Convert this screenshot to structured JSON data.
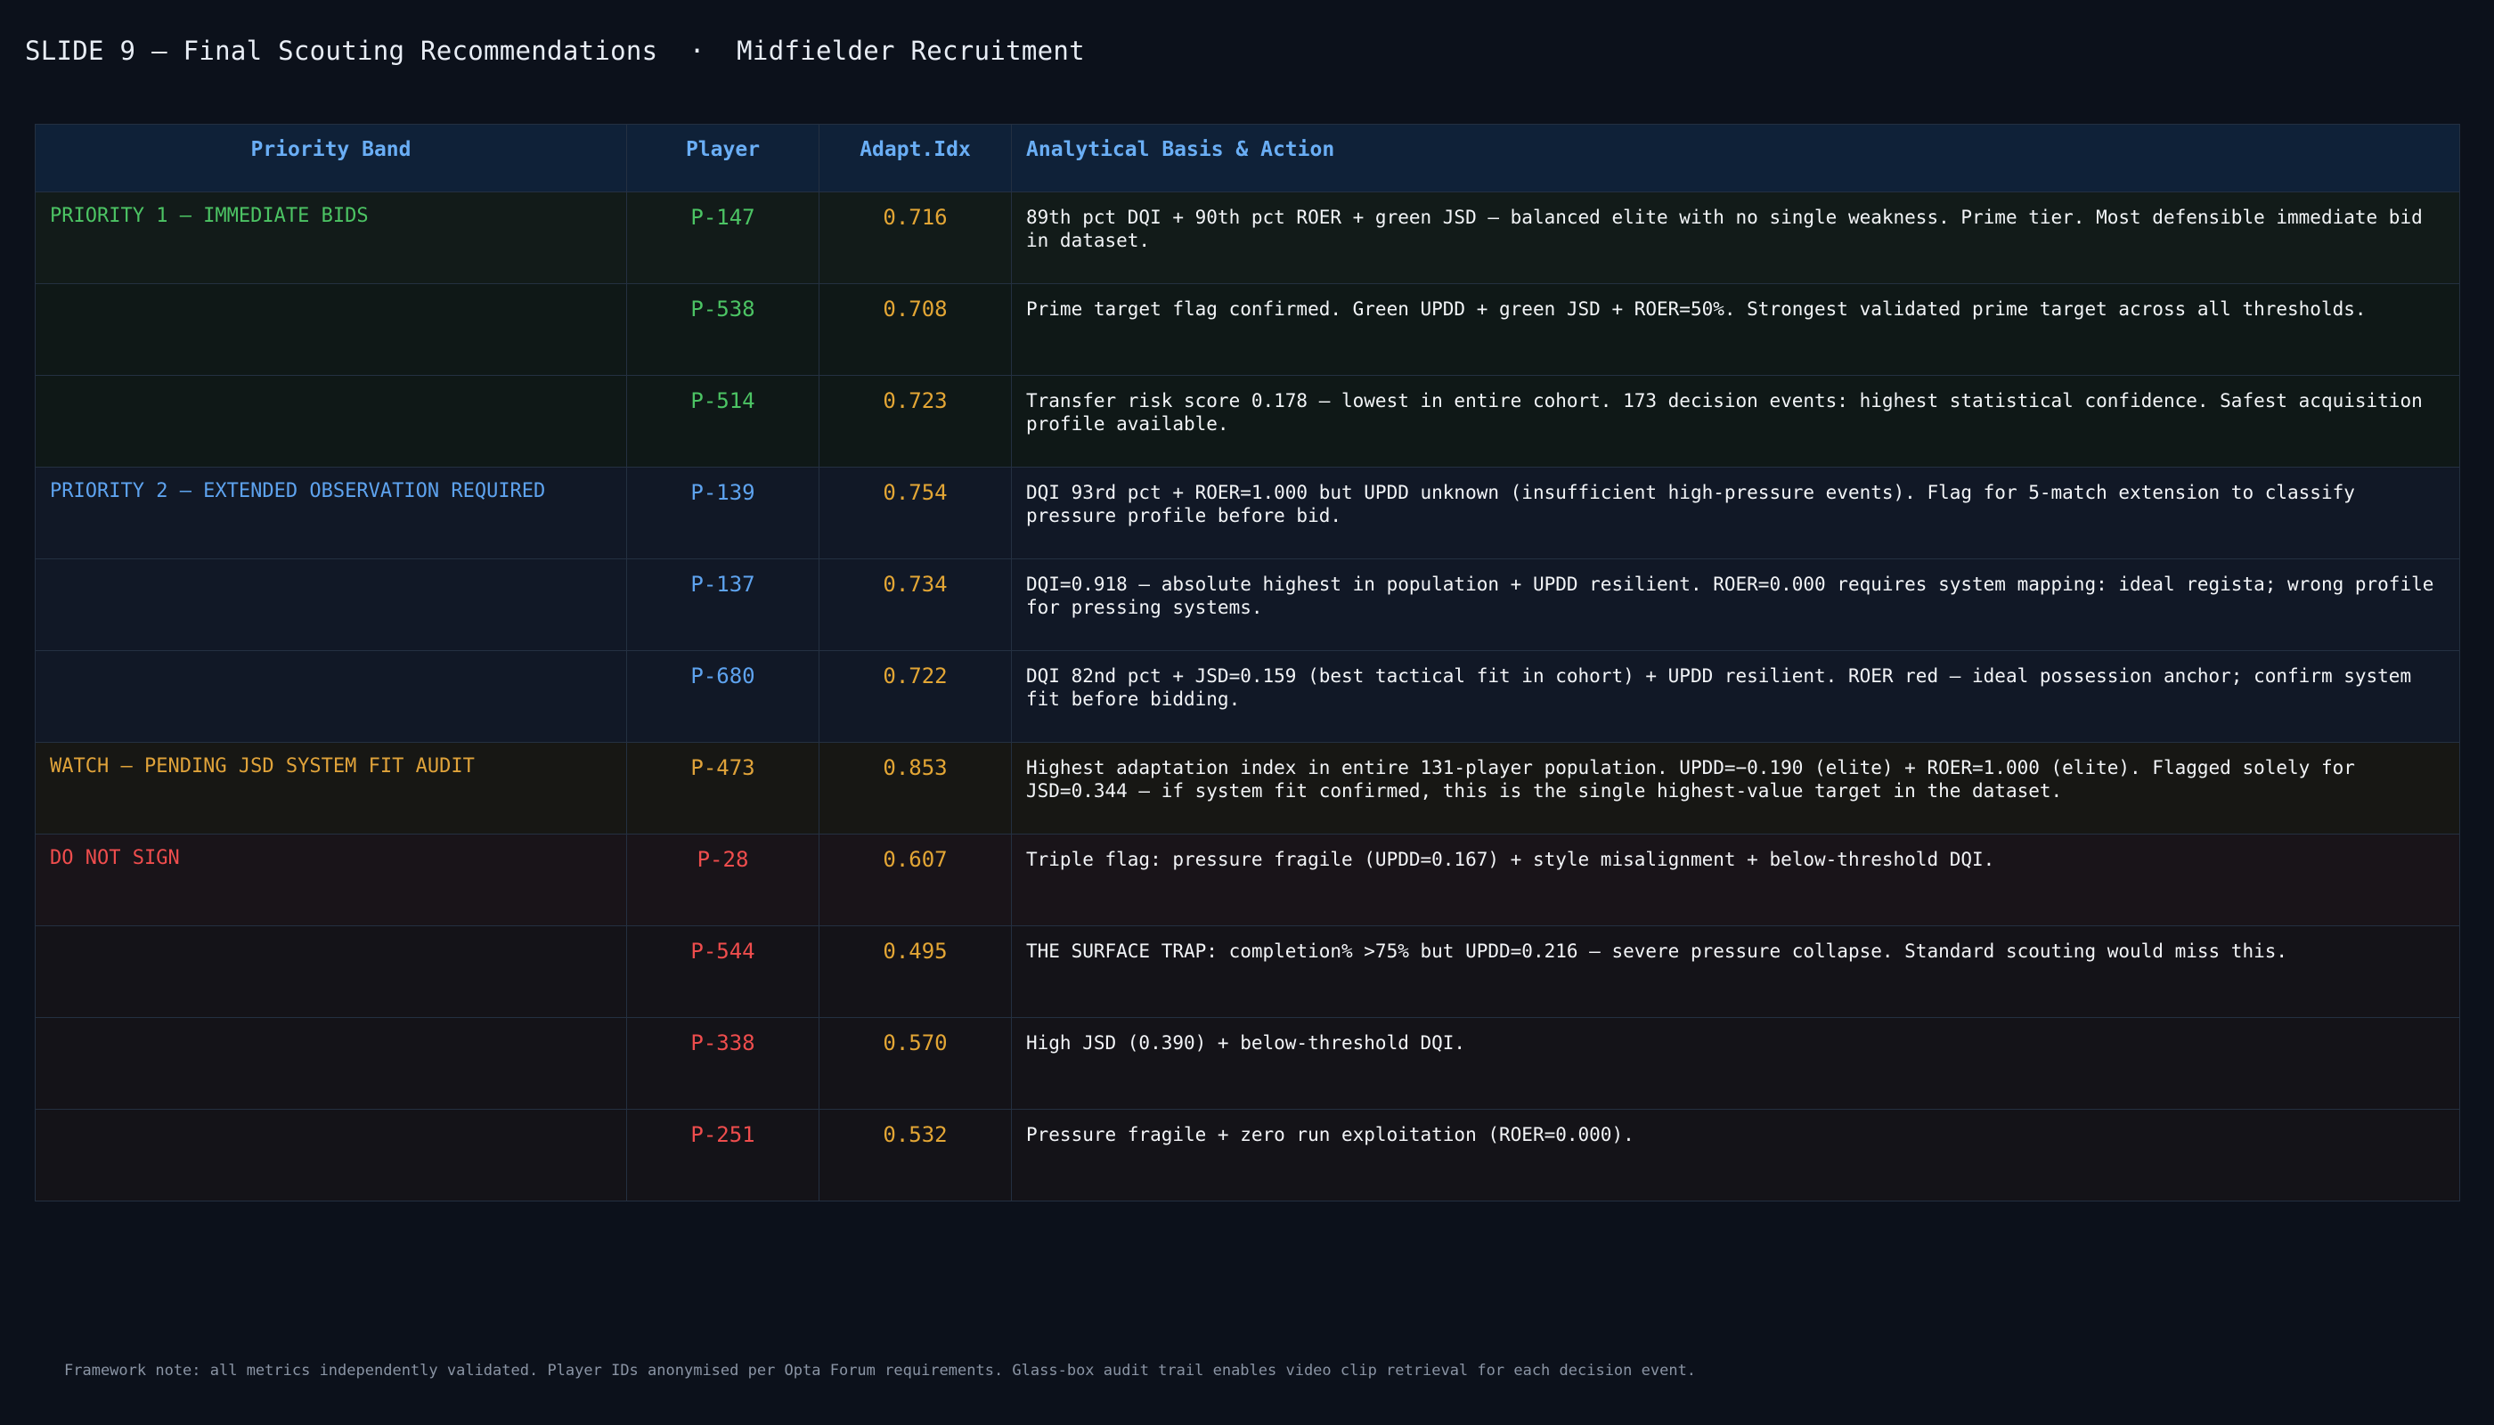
{
  "slide": {
    "title": "SLIDE 9 — Final Scouting Recommendations  ·  Midfielder Recruitment"
  },
  "table": {
    "headers": {
      "band": "Priority Band",
      "player": "Player",
      "adapt": "Adapt.Idx",
      "basis": "Analytical Basis & Action"
    },
    "rows": [
      {
        "band": "PRIORITY 1 — IMMEDIATE BIDS",
        "player": "P-147",
        "adapt": "0.716",
        "basis": "89th pct DQI + 90th pct ROER + green JSD — balanced elite with no single weakness. Prime tier. Most defensible immediate bid in dataset."
      },
      {
        "band": "",
        "player": "P-538",
        "adapt": "0.708",
        "basis": "Prime target flag confirmed. Green UPDD + green JSD + ROER=50%. Strongest validated prime target across all thresholds."
      },
      {
        "band": "",
        "player": "P-514",
        "adapt": "0.723",
        "basis": "Transfer risk score 0.178 — lowest in entire cohort. 173 decision events: highest statistical confidence. Safest acquisition profile available."
      },
      {
        "band": "PRIORITY 2 — EXTENDED OBSERVATION REQUIRED",
        "player": "P-139",
        "adapt": "0.754",
        "basis": "DQI 93rd pct + ROER=1.000 but UPDD unknown (insufficient high-pressure events). Flag for 5-match extension to classify pressure profile before bid."
      },
      {
        "band": "",
        "player": "P-137",
        "adapt": "0.734",
        "basis": "DQI=0.918 — absolute highest in population + UPDD resilient. ROER=0.000 requires system mapping: ideal regista; wrong profile for pressing systems."
      },
      {
        "band": "",
        "player": "P-680",
        "adapt": "0.722",
        "basis": "DQI 82nd pct + JSD=0.159 (best tactical fit in cohort) + UPDD resilient. ROER red — ideal possession anchor; confirm system fit before bidding."
      },
      {
        "band": "WATCH — PENDING JSD SYSTEM FIT AUDIT",
        "player": "P-473",
        "adapt": "0.853",
        "basis": "Highest adaptation index in entire 131-player population. UPDD=−0.190 (elite) + ROER=1.000 (elite). Flagged solely for JSD=0.344 — if system fit confirmed, this is the single highest-value target in the dataset."
      },
      {
        "band": "DO NOT SIGN",
        "player": "P-28",
        "adapt": "0.607",
        "basis": "Triple flag: pressure fragile (UPDD=0.167) + style misalignment + below-threshold DQI."
      },
      {
        "band": "",
        "player": "P-544",
        "adapt": "0.495",
        "basis": "THE SURFACE TRAP: completion% >75% but UPDD=0.216 — severe pressure collapse. Standard scouting would miss this."
      },
      {
        "band": "",
        "player": "P-338",
        "adapt": "0.570",
        "basis": "High JSD (0.390) + below-threshold DQI."
      },
      {
        "band": "",
        "player": "P-251",
        "adapt": "0.532",
        "basis": "Pressure fragile + zero run exploitation (ROER=0.000)."
      }
    ]
  },
  "footer": {
    "note": "Framework note: all metrics independently validated. Player IDs anonymised per Opta Forum requirements. Glass-box audit trail enables video clip retrieval for each decision event."
  }
}
